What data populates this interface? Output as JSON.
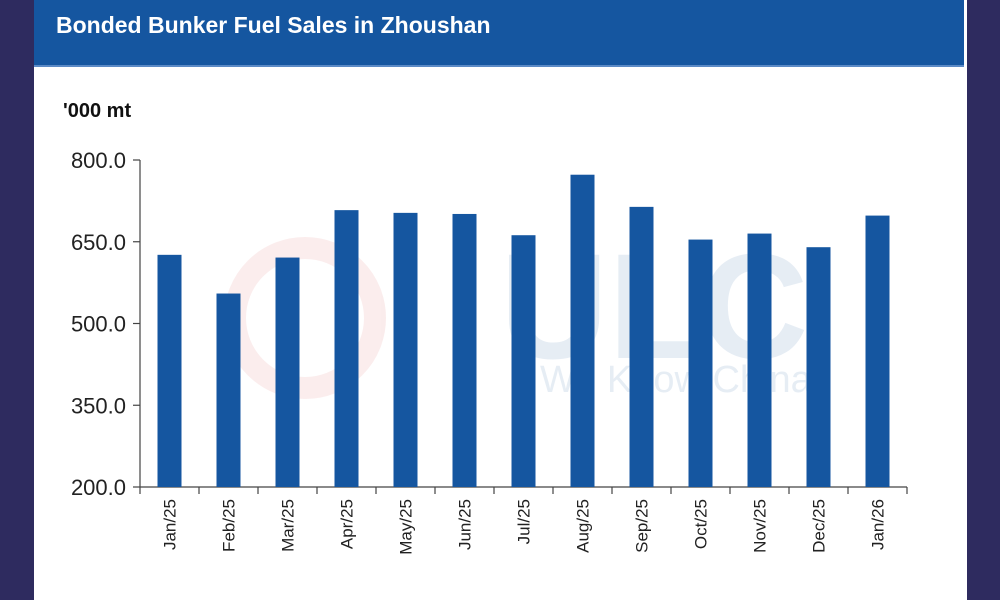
{
  "header": {
    "title": "Bonded Bunker Fuel Sales in Zhoushan"
  },
  "watermark": {
    "logo_text": "ULC",
    "tagline": "We Know China"
  },
  "colors": {
    "bar": "#1556a0",
    "title_bg": "#1556a0",
    "frame": "#2e2b5f"
  },
  "chart_data": {
    "type": "bar",
    "title": "Bonded Bunker Fuel Sales in Zhoushan",
    "ylabel": "'000 mt",
    "xlabel": "",
    "ylim": [
      200,
      800
    ],
    "yticks": [
      "800.0",
      "650.0",
      "500.0",
      "350.0",
      "200.0"
    ],
    "ytick_values": [
      800,
      650,
      500,
      350,
      200
    ],
    "categories": [
      "Jan/25",
      "Feb/25",
      "Mar/25",
      "Apr/25",
      "May/25",
      "Jun/25",
      "Jul/25",
      "Aug/25",
      "Sep/25",
      "Oct/25",
      "Nov/25",
      "Dec/25",
      "Jan/26"
    ],
    "values": [
      626,
      555,
      621,
      708,
      703,
      701,
      662,
      773,
      714,
      654,
      665,
      640,
      698
    ],
    "grid": false,
    "legend": "none"
  }
}
